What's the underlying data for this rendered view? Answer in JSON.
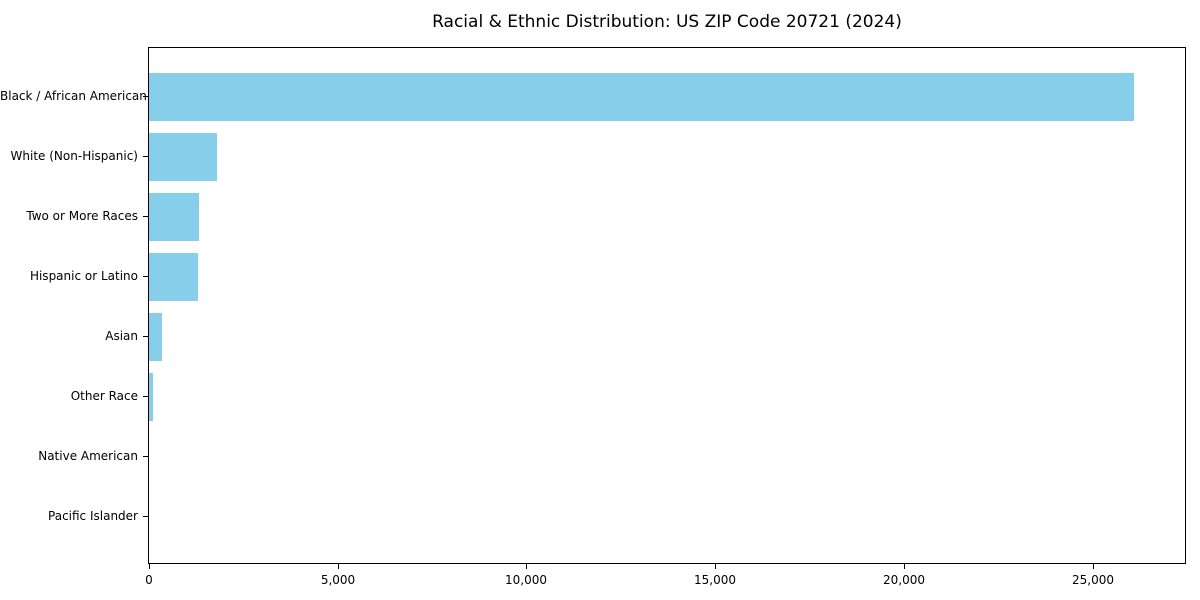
{
  "chart_data": {
    "type": "bar",
    "orientation": "horizontal",
    "title": "Racial & Ethnic Distribution: US ZIP Code 20721 (2024)",
    "categories": [
      "Black / African American",
      "White (Non-Hispanic)",
      "Two or More Races",
      "Hispanic or Latino",
      "Asian",
      "Other Race",
      "Native American",
      "Pacific Islander"
    ],
    "values": [
      26100,
      1800,
      1320,
      1300,
      350,
      100,
      0,
      0
    ],
    "xlabel": "",
    "ylabel": "",
    "xlim": [
      0,
      27450
    ],
    "xticks": [
      0,
      5000,
      10000,
      15000,
      20000,
      25000
    ],
    "xtick_labels": [
      "0",
      "5,000",
      "10,000",
      "15,000",
      "20,000",
      "25,000"
    ],
    "grid": false,
    "legend": "none",
    "bar_color": "#87CEEB",
    "axis_color": "#000000",
    "background_color": "#ffffff"
  }
}
